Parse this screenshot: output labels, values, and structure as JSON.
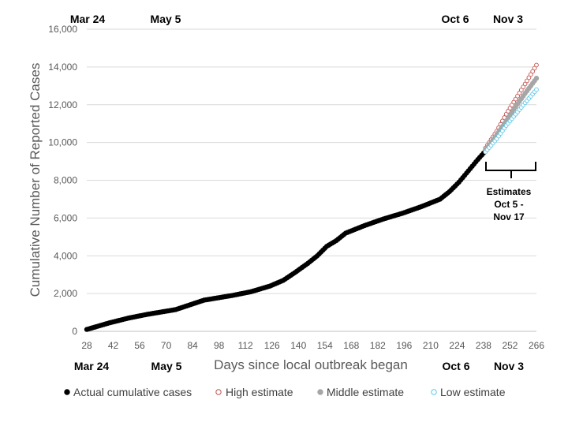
{
  "chart_data": {
    "type": "scatter",
    "title": "",
    "xlabel": "Days since local outbreak began",
    "ylabel": "Cumulative Number of Reported Cases",
    "xlim": [
      28,
      266
    ],
    "ylim": [
      0,
      16000
    ],
    "x_ticks": [
      "28",
      "42",
      "56",
      "70",
      "84",
      "98",
      "112",
      "126",
      "140",
      "154",
      "168",
      "182",
      "196",
      "210",
      "224",
      "238",
      "252",
      "266"
    ],
    "y_ticks": [
      "0",
      "2,000",
      "4,000",
      "6,000",
      "8,000",
      "10,000",
      "12,000",
      "14,000",
      "16,000"
    ],
    "date_markers_top": [
      "Mar 24",
      "May 5",
      "Oct 6",
      "Nov 3"
    ],
    "date_markers_bottom": [
      "Mar 24",
      "May 5",
      "Oct 6",
      "Nov 3"
    ],
    "annotation": [
      "Estimates",
      "Oct 5 -",
      "Nov 17"
    ],
    "legend": [
      "Actual cumulative cases",
      "High estimate",
      "Middle estimate",
      "Low estimate"
    ],
    "colors": {
      "actual": "#000000",
      "high": "#c0504d",
      "middle": "#a6a6a6",
      "low": "#5bc8e8"
    },
    "series": [
      {
        "name": "Actual cumulative cases",
        "style": "filled",
        "x": [
          28,
          40,
          50,
          60,
          75,
          90,
          105,
          115,
          125,
          132,
          138,
          145,
          150,
          155,
          160,
          165,
          175,
          185,
          195,
          205,
          215,
          220,
          225,
          230,
          235,
          239
        ],
        "y": [
          100,
          450,
          700,
          900,
          1150,
          1650,
          1900,
          2100,
          2400,
          2700,
          3100,
          3600,
          4000,
          4500,
          4800,
          5200,
          5600,
          5950,
          6250,
          6600,
          7000,
          7400,
          7900,
          8500,
          9100,
          9550
        ]
      },
      {
        "name": "High estimate",
        "style": "open",
        "x": [
          239,
          245,
          250,
          255,
          260,
          266
        ],
        "y": [
          9700,
          10600,
          11500,
          12300,
          13100,
          14100
        ]
      },
      {
        "name": "Middle estimate",
        "style": "filled",
        "x": [
          239,
          245,
          250,
          255,
          260,
          266
        ],
        "y": [
          9600,
          10400,
          11150,
          11900,
          12600,
          13400
        ]
      },
      {
        "name": "Low estimate",
        "style": "open",
        "x": [
          239,
          245,
          250,
          255,
          260,
          266
        ],
        "y": [
          9500,
          10200,
          10900,
          11500,
          12100,
          12800
        ]
      }
    ]
  }
}
